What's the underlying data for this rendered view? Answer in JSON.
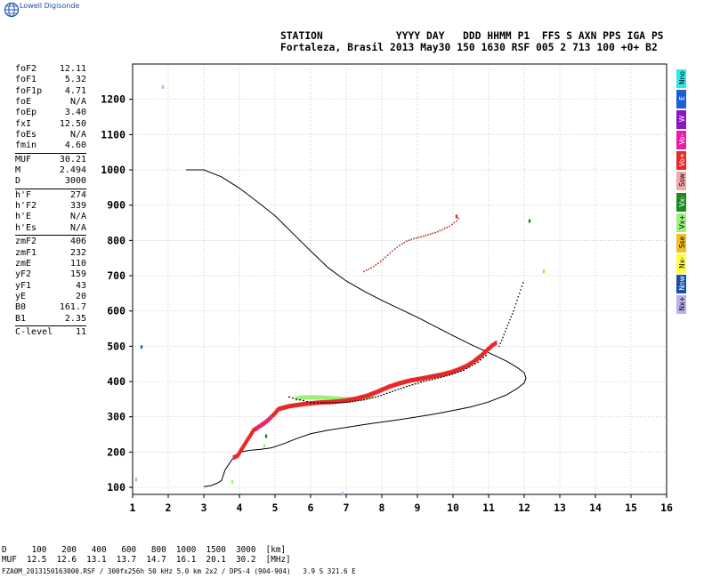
{
  "brand": {
    "name": "Lowell Digisonde"
  },
  "header": {
    "line1": "STATION            YYYY DAY   DDD HHMM P1  FFS S AXN PPS IGA PS",
    "line2": "Fortaleza, Brasil 2013 May30 150 1630 RSF 005 2 713 100 +0+ B2"
  },
  "params": {
    "group1": [
      {
        "label": "foF2",
        "value": "12.11"
      },
      {
        "label": "foF1",
        "value": "5.32"
      },
      {
        "label": "foF1p",
        "value": "4.71"
      },
      {
        "label": "foE",
        "value": "N/A"
      },
      {
        "label": "foEp",
        "value": "3.40"
      },
      {
        "label": "fxI",
        "value": "12.50"
      },
      {
        "label": "foEs",
        "value": "N/A"
      },
      {
        "label": "fmin",
        "value": "4.60"
      }
    ],
    "group2": [
      {
        "label": "MUF",
        "value": "30.21"
      },
      {
        "label": "M",
        "value": "2.494"
      },
      {
        "label": "D",
        "value": "3000"
      }
    ],
    "group3": [
      {
        "label": "h'F",
        "value": "274"
      },
      {
        "label": "h'F2",
        "value": "339"
      },
      {
        "label": "h'E",
        "value": "N/A"
      },
      {
        "label": "h'Es",
        "value": "N/A"
      }
    ],
    "group4": [
      {
        "label": "zmF2",
        "value": "406"
      },
      {
        "label": "zmF1",
        "value": "232"
      },
      {
        "label": "zmE",
        "value": "110"
      },
      {
        "label": "yF2",
        "value": "159"
      },
      {
        "label": "yF1",
        "value": "43"
      },
      {
        "label": "yE",
        "value": "20"
      },
      {
        "label": "B0",
        "value": "161.7"
      },
      {
        "label": "B1",
        "value": "2.35"
      }
    ],
    "group5": [
      {
        "label": "C-level",
        "value": "11"
      }
    ]
  },
  "legend": [
    {
      "label": "Nno",
      "color": "#2ee8e8"
    },
    {
      "label": "E",
      "color": "#1a5fd8"
    },
    {
      "label": "W",
      "color": "#8a18c0"
    },
    {
      "label": "Vo-",
      "color": "#e61fa8"
    },
    {
      "label": "Vo+",
      "color": "#e82828"
    },
    {
      "label": "Ssw",
      "color": "#f2a8a8"
    },
    {
      "label": "Vx-",
      "color": "#1e8a1e"
    },
    {
      "label": "Vx+",
      "color": "#9cf07a"
    },
    {
      "label": "Sse",
      "color": "#f0c020"
    },
    {
      "label": "Nx-",
      "color": "#ffff40"
    },
    {
      "label": "Nnw",
      "color": "#184fa8"
    },
    {
      "label": "Nx+",
      "color": "#b8b0ec"
    }
  ],
  "footer": {
    "line1": "D     100   200   400   600   800  1000  1500  3000  [km]",
    "line2": "MUF  12.5  12.6  13.1  13.7  14.7  16.1  20.1  30.2  [MHz]",
    "line3": "FZA0M_2013150163000.RSF / 300fx256h 50 kHz 5.0 km 2x2 / DPS-4 (904-904)   3.9 S 321.6 E"
  },
  "chart_data": {
    "type": "scatter",
    "xlim": [
      1,
      16
    ],
    "ylim": [
      80,
      1300
    ],
    "xticks": [
      1,
      2,
      3,
      4,
      5,
      6,
      7,
      8,
      9,
      10,
      11,
      12,
      13,
      14,
      15,
      16
    ],
    "yticks": [
      100,
      200,
      300,
      400,
      500,
      600,
      700,
      800,
      900,
      1000,
      1100,
      1200
    ],
    "grid": true,
    "profile": {
      "x": [
        3.0,
        3.2,
        3.4,
        3.5,
        3.6,
        3.8,
        4.0,
        4.3,
        4.6,
        4.9,
        5.2,
        5.6,
        6.0,
        6.5,
        7.0,
        7.5,
        8.0,
        8.5,
        9.0,
        9.5,
        10.0,
        10.5,
        11.0,
        11.5,
        11.8,
        12.0,
        12.05,
        12.0,
        11.8,
        11.5,
        11.0,
        10.5,
        10.0,
        9.5,
        9.0,
        8.5,
        8.0,
        7.5,
        7.0,
        6.5,
        6.0,
        5.5,
        5.0,
        4.5,
        4.0,
        3.5,
        3.0,
        2.5
      ],
      "y": [
        102,
        105,
        113,
        120,
        150,
        180,
        200,
        205,
        208,
        212,
        222,
        238,
        252,
        262,
        270,
        278,
        285,
        292,
        300,
        308,
        318,
        328,
        342,
        362,
        380,
        396,
        410,
        425,
        440,
        458,
        482,
        505,
        530,
        556,
        582,
        606,
        630,
        656,
        685,
        722,
        770,
        820,
        870,
        910,
        948,
        980,
        1000,
        1000
      ]
    },
    "trace_red": {
      "x": [
        3.85,
        3.95,
        4.4,
        4.6,
        4.8,
        5.0,
        5.1,
        5.4,
        5.8,
        6.2,
        6.6,
        7.0,
        7.3,
        7.6,
        7.9,
        8.2,
        8.5,
        8.8,
        9.1,
        9.4,
        9.7,
        10.0,
        10.2,
        10.4,
        10.6,
        10.8,
        10.95,
        11.1,
        11.25
      ],
      "y": [
        185,
        190,
        262,
        275,
        290,
        310,
        322,
        330,
        336,
        340,
        342,
        346,
        352,
        360,
        372,
        385,
        395,
        403,
        408,
        414,
        420,
        428,
        436,
        445,
        458,
        474,
        488,
        502,
        512
      ]
    },
    "trace_green": {
      "x": [
        5.6,
        5.8,
        6.1,
        6.4,
        6.7,
        7.0,
        7.2,
        7.4,
        7.6,
        7.8
      ],
      "y": [
        352,
        355,
        355,
        354,
        352,
        350,
        350,
        352,
        356,
        362
      ]
    },
    "trace_magenta": {
      "x": [
        4.5,
        4.65,
        4.8,
        4.95
      ],
      "y": [
        265,
        280,
        292,
        305
      ]
    },
    "trace_black": {
      "x": [
        5.4,
        5.6,
        5.8,
        6.0,
        6.3,
        6.7,
        7.1,
        7.5,
        7.9,
        8.3,
        8.7,
        9.1,
        9.5,
        9.9,
        10.3,
        10.7,
        11.0
      ],
      "y": [
        356,
        350,
        346,
        340,
        340,
        340,
        342,
        348,
        358,
        372,
        386,
        398,
        408,
        418,
        432,
        455,
        480
      ]
    },
    "trace_x_upper": {
      "x": [
        7.5,
        7.7,
        7.9,
        8.1,
        8.3,
        8.5,
        8.7,
        8.9,
        9.1,
        9.3,
        9.5,
        9.7,
        9.9,
        10.1,
        10.2
      ],
      "y": [
        712,
        722,
        735,
        752,
        770,
        786,
        798,
        805,
        810,
        816,
        822,
        830,
        840,
        855,
        870
      ]
    },
    "trace_cusp": {
      "x": [
        11.3,
        11.4,
        11.5,
        11.6,
        11.7,
        11.8,
        11.9,
        12.0
      ],
      "y": [
        500,
        525,
        550,
        575,
        600,
        630,
        660,
        690
      ]
    },
    "scatter_points": [
      {
        "x": 1.85,
        "y": 1235,
        "color": "#b8b0ec"
      },
      {
        "x": 1.25,
        "y": 498,
        "color": "#1a5fd8"
      },
      {
        "x": 1.1,
        "y": 122,
        "color": "#b8b0ec"
      },
      {
        "x": 3.8,
        "y": 115,
        "color": "#9cf07a"
      },
      {
        "x": 4.75,
        "y": 245,
        "color": "#1e8a1e"
      },
      {
        "x": 4.7,
        "y": 218,
        "color": "#9cf07a"
      },
      {
        "x": 12.55,
        "y": 712,
        "color": "#f0c020"
      },
      {
        "x": 12.15,
        "y": 855,
        "color": "#1e8a1e"
      },
      {
        "x": 6.9,
        "y": 82,
        "color": "#b8b0ec"
      },
      {
        "x": 10.1,
        "y": 868,
        "color": "#e82828"
      }
    ]
  }
}
